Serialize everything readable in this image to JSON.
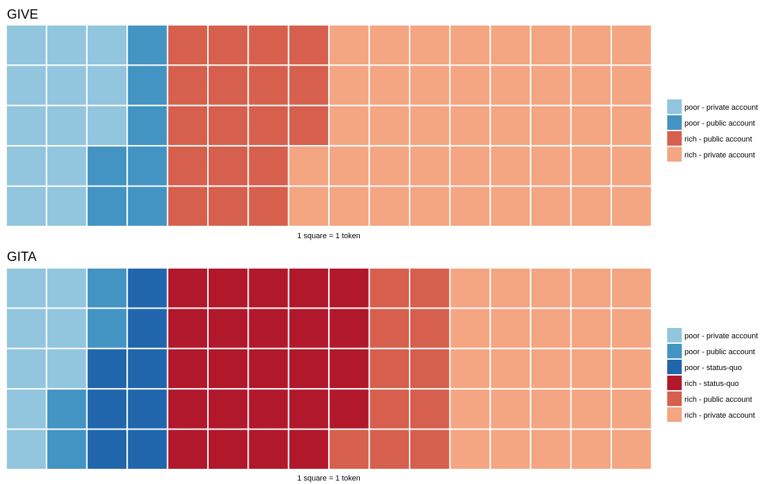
{
  "chart_data": [
    {
      "type": "waffle",
      "title": "GIVE",
      "caption": "1 square = 1 token",
      "rows": 5,
      "columns": 16,
      "fill_order": "column-major, top to bottom",
      "legend_placement": "right",
      "series": [
        {
          "name": "poor - private account",
          "value": 13,
          "color": "#92c5de"
        },
        {
          "name": "poor - public account",
          "value": 7,
          "color": "#4393c3"
        },
        {
          "name": "rich - public account",
          "value": 18,
          "color": "#d6604d"
        },
        {
          "name": "rich - private account",
          "value": 42,
          "color": "#f4a582"
        }
      ]
    },
    {
      "type": "waffle",
      "title": "GITA",
      "caption": "1 square = 1 token",
      "rows": 5,
      "columns": 16,
      "fill_order": "column-major, top to bottom",
      "legend_placement": "right",
      "series": [
        {
          "name": "poor - private account",
          "value": 8,
          "color": "#92c5de"
        },
        {
          "name": "poor - public account",
          "value": 4,
          "color": "#4393c3"
        },
        {
          "name": "poor - status-quo",
          "value": 8,
          "color": "#2166ac"
        },
        {
          "name": "rich - status-quo",
          "value": 24,
          "color": "#b2182b"
        },
        {
          "name": "rich - public account",
          "value": 11,
          "color": "#d6604d"
        },
        {
          "name": "rich - private account",
          "value": 25,
          "color": "#f4a582"
        }
      ]
    }
  ]
}
